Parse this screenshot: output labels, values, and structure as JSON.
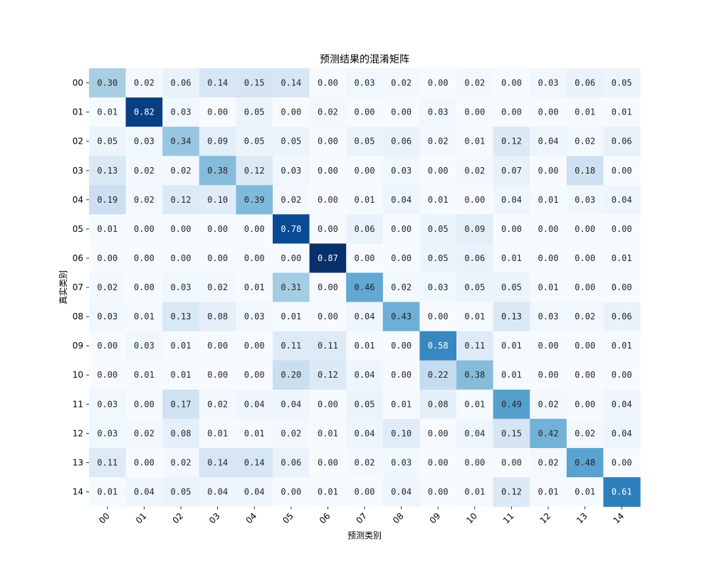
{
  "chart_data": {
    "type": "heatmap",
    "title": "预测结果的混淆矩阵",
    "xlabel": "预测类别",
    "ylabel": "真实类别",
    "x_categories": [
      "00",
      "01",
      "02",
      "03",
      "04",
      "05",
      "06",
      "07",
      "08",
      "09",
      "10",
      "11",
      "12",
      "13",
      "14"
    ],
    "y_categories": [
      "00",
      "01",
      "02",
      "03",
      "04",
      "05",
      "06",
      "07",
      "08",
      "09",
      "10",
      "11",
      "12",
      "13",
      "14"
    ],
    "colormap": "Blues",
    "value_range": [
      0,
      0.87
    ],
    "grid": false,
    "legend": "none",
    "values": [
      [
        0.3,
        0.02,
        0.06,
        0.14,
        0.15,
        0.14,
        0.0,
        0.03,
        0.02,
        0.0,
        0.02,
        0.0,
        0.03,
        0.06,
        0.05
      ],
      [
        0.01,
        0.82,
        0.03,
        0.0,
        0.05,
        0.0,
        0.02,
        0.0,
        0.0,
        0.03,
        0.0,
        0.0,
        0.0,
        0.01,
        0.01
      ],
      [
        0.05,
        0.03,
        0.34,
        0.09,
        0.05,
        0.05,
        0.0,
        0.05,
        0.06,
        0.02,
        0.01,
        0.12,
        0.04,
        0.02,
        0.06
      ],
      [
        0.13,
        0.02,
        0.02,
        0.38,
        0.12,
        0.03,
        0.0,
        0.0,
        0.03,
        0.0,
        0.02,
        0.07,
        0.0,
        0.18,
        0.0
      ],
      [
        0.19,
        0.02,
        0.12,
        0.1,
        0.39,
        0.02,
        0.0,
        0.01,
        0.04,
        0.01,
        0.0,
        0.04,
        0.01,
        0.03,
        0.04
      ],
      [
        0.01,
        0.0,
        0.0,
        0.0,
        0.0,
        0.78,
        0.0,
        0.06,
        0.0,
        0.05,
        0.09,
        0.0,
        0.0,
        0.0,
        0.0
      ],
      [
        0.0,
        0.0,
        0.0,
        0.0,
        0.0,
        0.0,
        0.87,
        0.0,
        0.0,
        0.05,
        0.06,
        0.01,
        0.0,
        0.0,
        0.01
      ],
      [
        0.02,
        0.0,
        0.03,
        0.02,
        0.01,
        0.31,
        0.0,
        0.46,
        0.02,
        0.03,
        0.05,
        0.05,
        0.01,
        0.0,
        0.0
      ],
      [
        0.03,
        0.01,
        0.13,
        0.08,
        0.03,
        0.01,
        0.0,
        0.04,
        0.43,
        0.0,
        0.01,
        0.13,
        0.03,
        0.02,
        0.06
      ],
      [
        0.0,
        0.03,
        0.01,
        0.0,
        0.0,
        0.11,
        0.11,
        0.01,
        0.0,
        0.58,
        0.11,
        0.01,
        0.0,
        0.0,
        0.01
      ],
      [
        0.0,
        0.01,
        0.01,
        0.0,
        0.0,
        0.2,
        0.12,
        0.04,
        0.0,
        0.22,
        0.38,
        0.01,
        0.0,
        0.0,
        0.0
      ],
      [
        0.03,
        0.0,
        0.17,
        0.02,
        0.04,
        0.04,
        0.0,
        0.05,
        0.01,
        0.08,
        0.01,
        0.49,
        0.02,
        0.0,
        0.04
      ],
      [
        0.03,
        0.02,
        0.08,
        0.01,
        0.01,
        0.02,
        0.01,
        0.04,
        0.1,
        0.0,
        0.04,
        0.15,
        0.42,
        0.02,
        0.04
      ],
      [
        0.11,
        0.0,
        0.02,
        0.14,
        0.14,
        0.06,
        0.0,
        0.02,
        0.03,
        0.0,
        0.0,
        0.0,
        0.02,
        0.48,
        0.0
      ],
      [
        0.01,
        0.04,
        0.05,
        0.04,
        0.04,
        0.0,
        0.01,
        0.0,
        0.04,
        0.0,
        0.01,
        0.12,
        0.01,
        0.01,
        0.61
      ]
    ]
  }
}
